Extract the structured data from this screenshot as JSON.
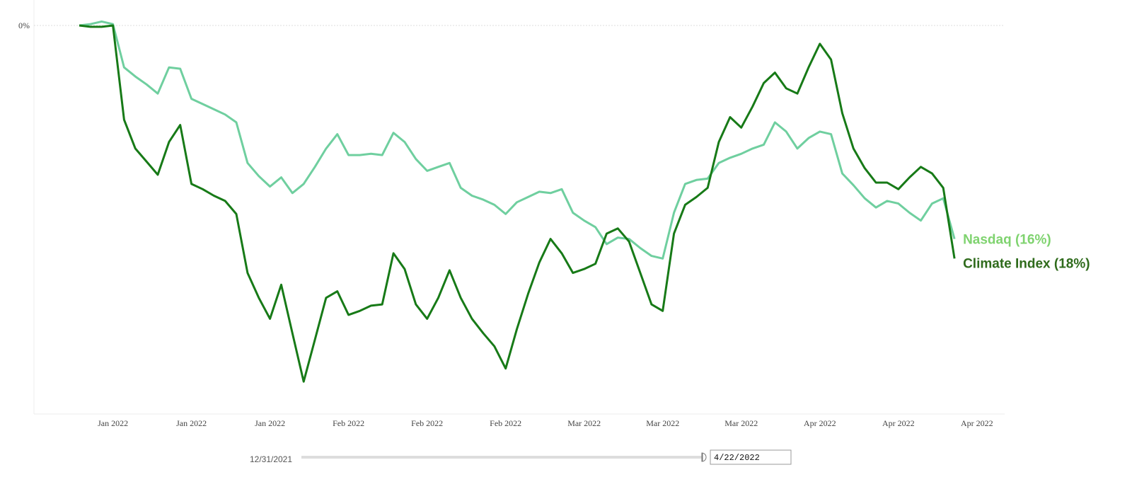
{
  "chart_data": {
    "type": "line",
    "categories": [
      null,
      null,
      null,
      "Jan 2022",
      null,
      null,
      null,
      null,
      null,
      null,
      "Jan 2022",
      null,
      null,
      null,
      null,
      null,
      null,
      "Jan 2022",
      null,
      null,
      null,
      null,
      null,
      null,
      "Feb 2022",
      null,
      null,
      null,
      null,
      null,
      null,
      "Feb 2022",
      null,
      null,
      null,
      null,
      null,
      null,
      "Feb 2022",
      null,
      null,
      null,
      null,
      null,
      null,
      "Mar 2022",
      null,
      null,
      null,
      null,
      null,
      null,
      "Mar 2022",
      null,
      null,
      null,
      null,
      null,
      null,
      "Mar 2022",
      null,
      null,
      null,
      null,
      null,
      null,
      "Apr 2022",
      null,
      null,
      null,
      null,
      null,
      null,
      "Apr 2022",
      null,
      null,
      null,
      null,
      null,
      null,
      "Apr 2022"
    ],
    "series": [
      {
        "name": "Nasdaq (16%)",
        "color": "#6fcf9f",
        "label_color": "#7fd36f",
        "values": [
          0,
          0.1,
          0.3,
          0.1,
          -3.2,
          -3.9,
          -4.5,
          -5.2,
          -3.2,
          -3.3,
          -5.6,
          -6.0,
          -6.4,
          -6.8,
          -7.4,
          -10.5,
          -11.5,
          -12.3,
          -11.6,
          -12.8,
          -12.1,
          -10.8,
          -9.4,
          -8.3,
          -9.9,
          -9.9,
          -9.8,
          -9.9,
          -8.2,
          -8.9,
          -10.2,
          -11.1,
          -10.8,
          -10.5,
          -12.4,
          -13.0,
          -13.3,
          -13.7,
          -14.4,
          -13.5,
          -13.1,
          -12.7,
          -12.8,
          -12.5,
          -14.3,
          -14.9,
          -15.4,
          -16.7,
          -16.2,
          -16.3,
          -17.0,
          -17.6,
          -17.8,
          -14.3,
          -12.1,
          -11.8,
          -11.7,
          -10.5,
          -10.1,
          -9.8,
          -9.4,
          -9.1,
          -7.4,
          -8.1,
          -9.4,
          -8.6,
          -8.1,
          -8.3,
          -11.3,
          -12.2,
          -13.2,
          -13.9,
          -13.4,
          -13.6,
          -14.3,
          -14.9,
          -13.6,
          -13.2,
          -16.3,
          null,
          null
        ]
      },
      {
        "name": "Climate Index (18%)",
        "color": "#177a17",
        "label_color": "#2f6b1c",
        "values": [
          0,
          -0.1,
          -0.1,
          0,
          -7.2,
          -9.4,
          -10.4,
          -11.4,
          -8.9,
          -7.6,
          -12.1,
          -12.5,
          -13.0,
          -13.4,
          -14.4,
          -18.9,
          -20.8,
          -22.4,
          -19.8,
          -23.5,
          -27.2,
          -24.0,
          -20.8,
          -20.3,
          -22.1,
          -21.8,
          -21.4,
          -21.3,
          -17.4,
          -18.6,
          -21.3,
          -22.4,
          -20.8,
          -18.7,
          -20.8,
          -22.4,
          -23.5,
          -24.5,
          -26.2,
          -23.2,
          -20.5,
          -18.1,
          -16.3,
          -17.4,
          -18.9,
          -18.6,
          -18.2,
          -15.9,
          -15.5,
          -16.5,
          -18.9,
          -21.3,
          -21.8,
          -15.9,
          -13.7,
          -13.1,
          -12.4,
          -8.9,
          -7.0,
          -7.8,
          -6.2,
          -4.4,
          -3.6,
          -4.8,
          -5.2,
          -3.2,
          -1.4,
          -2.6,
          -6.7,
          -9.4,
          -10.9,
          -12.0,
          -12.0,
          -12.5,
          -11.6,
          -10.8,
          -11.3,
          -12.4,
          -17.8,
          null,
          null
        ]
      }
    ],
    "ylim": [
      -29.5,
      1
    ],
    "yticks": [
      {
        "value": 0,
        "label": "0%"
      }
    ],
    "grid": true
  },
  "date_range": {
    "start": "12/31/2021",
    "end": "4/22/2022"
  }
}
